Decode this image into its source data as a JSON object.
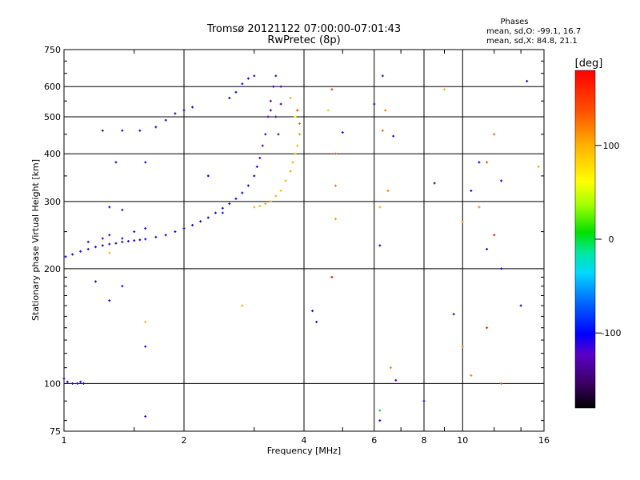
{
  "chart_data": {
    "type": "scatter",
    "title": "Tromsø 20121122 07:00:00-07:01:43",
    "subtitle": "RwPretec (8p)",
    "phases_header": "Phases",
    "phases_o": "mean, sd,O: -99.1, 16.7",
    "phases_x": "mean, sd,X:  84.8, 21.1",
    "xlabel": "Frequency [MHz]",
    "ylabel": "Stationary phase Virtual Height [km]",
    "x_scale": "log",
    "y_scale": "log",
    "xlim": [
      1,
      16
    ],
    "ylim": [
      75,
      750
    ],
    "x_ticks": [
      1,
      2,
      4,
      6,
      8,
      10,
      16
    ],
    "x_tick_labels": [
      "1",
      "2",
      "4",
      "6",
      "8",
      "10",
      "16"
    ],
    "y_ticks": [
      75,
      100,
      200,
      300,
      400,
      500,
      600,
      750
    ],
    "y_tick_labels": [
      "75",
      "100",
      "200",
      "300",
      "400",
      "500",
      "600",
      "750"
    ],
    "grid": true,
    "colorbar": {
      "label": "[deg]",
      "range": [
        -180,
        180
      ],
      "ticks": [
        100,
        0,
        -100
      ],
      "tick_labels": [
        "100",
        "0",
        "-100"
      ]
    },
    "series": [
      {
        "points": [
          [
            1.0,
            103,
            -110
          ],
          [
            1.02,
            101,
            -110
          ],
          [
            1.05,
            100,
            -108
          ],
          [
            1.08,
            100,
            -110
          ],
          [
            1.1,
            101,
            -112
          ],
          [
            1.12,
            100,
            -108
          ],
          [
            1.01,
            215,
            -110
          ],
          [
            1.05,
            218,
            -108
          ],
          [
            1.1,
            222,
            -110
          ],
          [
            1.15,
            225,
            -112
          ],
          [
            1.2,
            228,
            -110
          ],
          [
            1.25,
            230,
            -105
          ],
          [
            1.3,
            232,
            -110
          ],
          [
            1.35,
            233,
            -108
          ],
          [
            1.4,
            235,
            -110
          ],
          [
            1.45,
            236,
            -112
          ],
          [
            1.5,
            237,
            -110
          ],
          [
            1.55,
            238,
            -110
          ],
          [
            1.6,
            239,
            -108
          ],
          [
            1.7,
            242,
            -110
          ],
          [
            1.8,
            245,
            -106
          ],
          [
            1.9,
            250,
            -108
          ],
          [
            2.0,
            255,
            -110
          ],
          [
            2.1,
            260,
            -108
          ],
          [
            2.2,
            266,
            -110
          ],
          [
            2.3,
            272,
            -106
          ],
          [
            2.4,
            280,
            -108
          ],
          [
            2.5,
            288,
            -105
          ],
          [
            2.6,
            296,
            -106
          ],
          [
            2.7,
            305,
            -104
          ],
          [
            2.8,
            316,
            -102
          ],
          [
            2.9,
            330,
            -104
          ],
          [
            3.0,
            350,
            -100
          ],
          [
            3.05,
            370,
            -110
          ],
          [
            3.1,
            390,
            -115
          ],
          [
            3.15,
            420,
            -120
          ],
          [
            3.2,
            450,
            -130
          ],
          [
            3.25,
            500,
            -135
          ],
          [
            3.3,
            550,
            -140
          ],
          [
            3.35,
            600,
            -130
          ],
          [
            3.4,
            640,
            -120
          ],
          [
            1.15,
            235,
            -115
          ],
          [
            1.25,
            240,
            -115
          ],
          [
            1.3,
            245,
            -120
          ],
          [
            1.4,
            240,
            -118
          ],
          [
            1.5,
            250,
            -110
          ],
          [
            1.6,
            255,
            -112
          ],
          [
            1.3,
            290,
            -110
          ],
          [
            1.4,
            285,
            -112
          ],
          [
            1.35,
            380,
            -110
          ],
          [
            1.6,
            380,
            -115
          ],
          [
            1.25,
            460,
            -112
          ],
          [
            1.4,
            460,
            -110
          ],
          [
            1.55,
            460,
            -115
          ],
          [
            1.7,
            470,
            -112
          ],
          [
            1.8,
            490,
            -110
          ],
          [
            1.9,
            510,
            -110
          ],
          [
            2.0,
            520,
            -108
          ],
          [
            2.1,
            530,
            -106
          ],
          [
            2.6,
            560,
            -100
          ],
          [
            2.7,
            580,
            -95
          ],
          [
            2.8,
            610,
            -105
          ],
          [
            2.9,
            630,
            -110
          ],
          [
            3.0,
            640,
            -115
          ],
          [
            3.3,
            520,
            -130
          ],
          [
            3.4,
            500,
            -140
          ],
          [
            3.5,
            540,
            -135
          ],
          [
            3.5,
            600,
            -130
          ],
          [
            3.45,
            450,
            -125
          ],
          [
            2.3,
            350,
            -100
          ],
          [
            2.5,
            280,
            -90
          ],
          [
            1.2,
            185,
            -110
          ],
          [
            1.3,
            165,
            -110
          ],
          [
            1.4,
            180,
            -105
          ],
          [
            1.6,
            125,
            -110
          ],
          [
            1.6,
            82,
            -110
          ],
          [
            4.2,
            155,
            -110
          ],
          [
            4.3,
            145,
            -110
          ],
          [
            5.0,
            455,
            -110
          ],
          [
            6.0,
            540,
            -110
          ],
          [
            6.2,
            230,
            -110
          ],
          [
            6.2,
            80,
            -110
          ],
          [
            6.7,
            445,
            -110
          ],
          [
            6.8,
            102,
            -120
          ],
          [
            8.0,
            90,
            -110
          ],
          [
            8.5,
            335,
            -110
          ],
          [
            9.5,
            152,
            -110
          ],
          [
            10.5,
            320,
            -110
          ],
          [
            11.5,
            225,
            -110
          ],
          [
            12.5,
            340,
            -110
          ],
          [
            12.5,
            200,
            -110
          ],
          [
            14.0,
            160,
            -110
          ],
          [
            14.5,
            620,
            -110
          ],
          [
            11.0,
            380,
            -100
          ],
          [
            6.3,
            640,
            -130
          ],
          [
            4.7,
            190,
            170
          ]
        ]
      },
      {
        "points": [
          [
            3.0,
            290,
            100
          ],
          [
            3.1,
            292,
            95
          ],
          [
            3.2,
            296,
            100
          ],
          [
            3.3,
            300,
            105
          ],
          [
            3.4,
            310,
            100
          ],
          [
            3.5,
            320,
            95
          ],
          [
            3.6,
            340,
            100
          ],
          [
            3.7,
            360,
            105
          ],
          [
            3.75,
            380,
            100
          ],
          [
            3.8,
            400,
            95
          ],
          [
            3.85,
            420,
            100
          ],
          [
            3.9,
            450,
            110
          ],
          [
            3.9,
            480,
            130
          ],
          [
            3.85,
            520,
            150
          ],
          [
            3.7,
            560,
            100
          ],
          [
            3.8,
            500,
            60
          ],
          [
            4.7,
            590,
            150
          ],
          [
            4.6,
            520,
            40
          ],
          [
            4.8,
            400,
            130
          ],
          [
            4.8,
            330,
            120
          ],
          [
            4.8,
            270,
            110
          ],
          [
            6.2,
            290,
            100
          ],
          [
            6.5,
            320,
            120
          ],
          [
            6.6,
            110,
            120
          ],
          [
            6.3,
            460,
            130
          ],
          [
            6.4,
            520,
            120
          ],
          [
            9.0,
            590,
            100
          ],
          [
            10.0,
            265,
            110
          ],
          [
            10.0,
            125,
            120
          ],
          [
            10.5,
            105,
            120
          ],
          [
            11.0,
            290,
            120
          ],
          [
            11.5,
            140,
            160
          ],
          [
            12.0,
            450,
            130
          ],
          [
            12.5,
            100,
            140
          ],
          [
            15.5,
            370,
            100
          ],
          [
            2.8,
            160,
            100
          ],
          [
            1.6,
            145,
            100
          ],
          [
            1.3,
            220,
            100
          ],
          [
            6.2,
            85,
            0
          ],
          [
            11.5,
            380,
            140
          ],
          [
            12.0,
            245,
            170
          ]
        ]
      }
    ]
  }
}
